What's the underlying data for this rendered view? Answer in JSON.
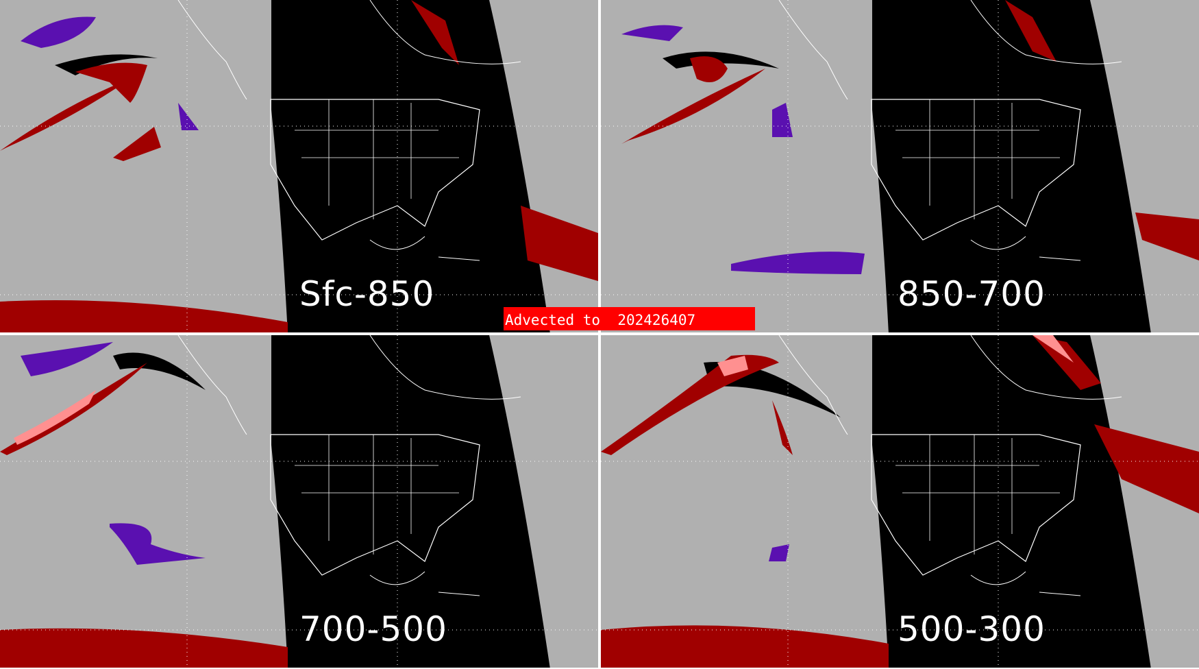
{
  "panels": [
    {
      "label": "Sfc-850"
    },
    {
      "label": "850-700"
    },
    {
      "label": "700-500"
    },
    {
      "label": "500-300"
    }
  ],
  "banner": {
    "text": "Advected to  202426407"
  },
  "colors": {
    "background": "#b0b0b0",
    "night": "#000000",
    "dark_red": "#a00000",
    "pink": "#ff9090",
    "purple": "#5a10b0",
    "banner": "#ff0000"
  }
}
